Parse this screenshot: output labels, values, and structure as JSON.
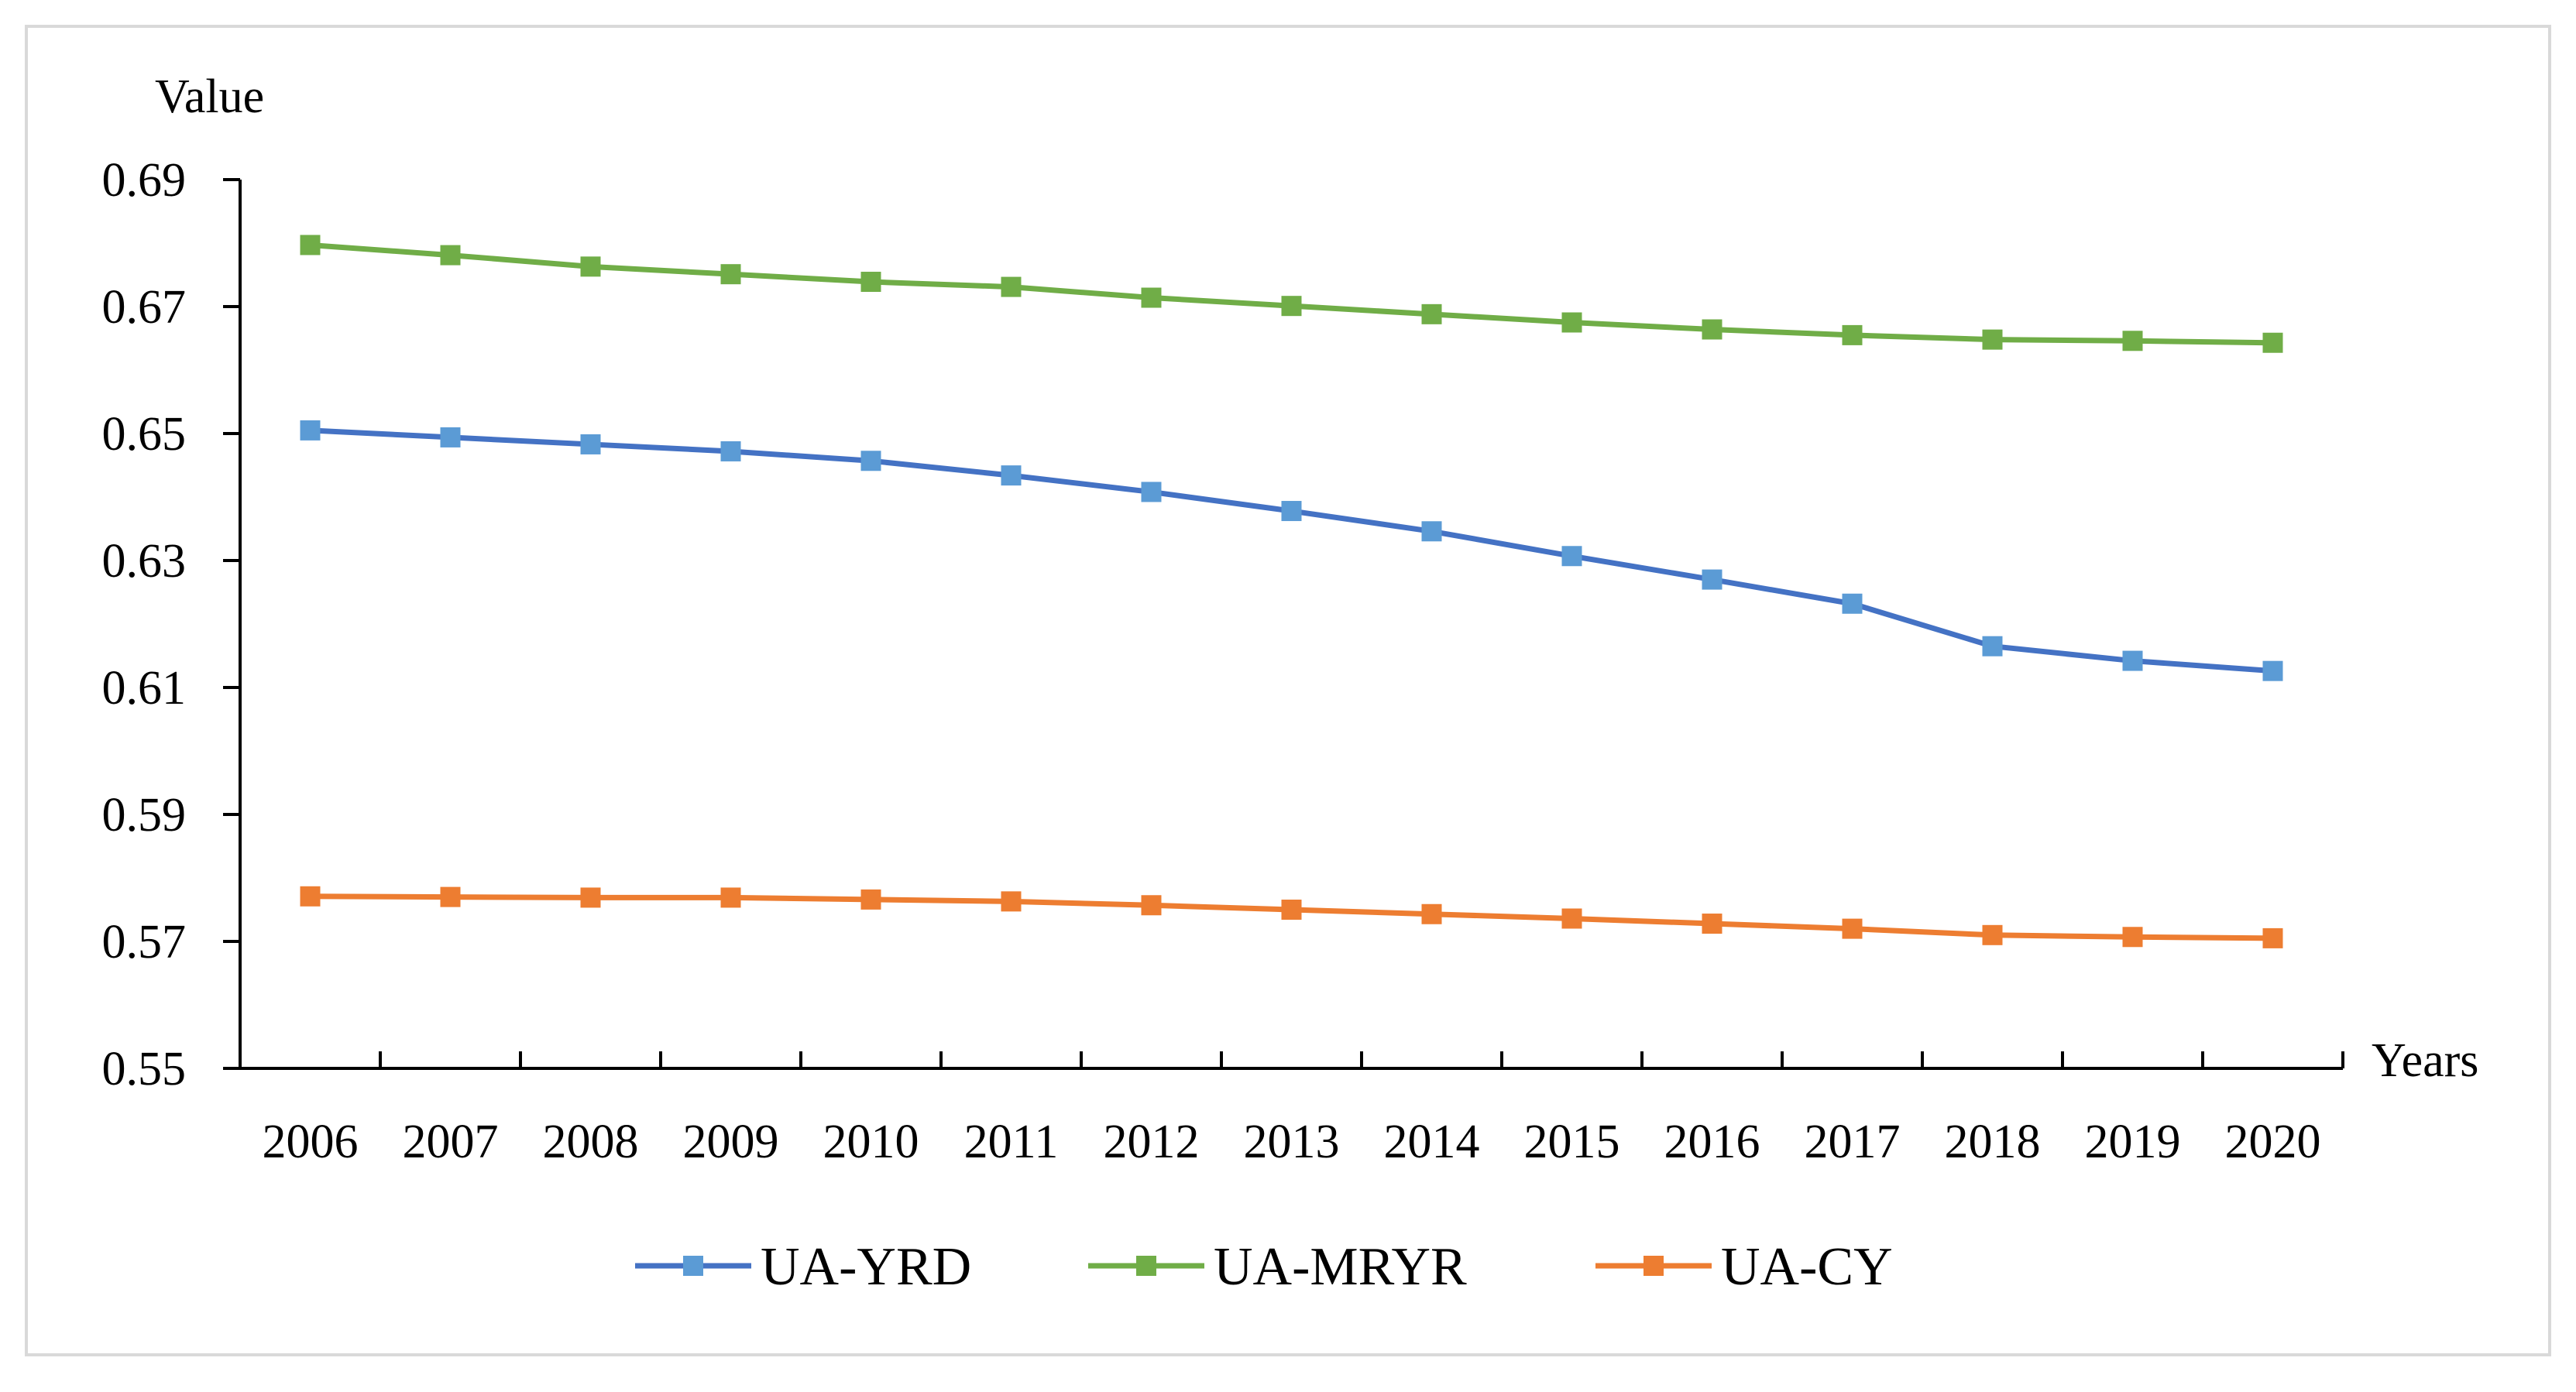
{
  "chart_data": {
    "type": "line",
    "title": "",
    "ylabel": "Value",
    "xlabel": "Years",
    "ylim": [
      0.55,
      0.69
    ],
    "yticks": [
      "0.55",
      "0.57",
      "0.59",
      "0.61",
      "0.63",
      "0.65",
      "0.67",
      "0.69"
    ],
    "grid": false,
    "legend_position": "bottom",
    "categories": [
      "2006",
      "2007",
      "2008",
      "2009",
      "2010",
      "2011",
      "2012",
      "2013",
      "2014",
      "2015",
      "2016",
      "2017",
      "2018",
      "2019",
      "2020"
    ],
    "series": [
      {
        "name": "UA-YRD",
        "color": "#4472C4",
        "marker_color": "#5B9BD5",
        "values": [
          0.6505,
          0.6494,
          0.6483,
          0.6472,
          0.6457,
          0.6434,
          0.6408,
          0.6378,
          0.6346,
          0.6307,
          0.627,
          0.6232,
          0.6165,
          0.6142,
          0.6126
        ]
      },
      {
        "name": "UA-MRYR",
        "color": "#70AD47",
        "marker_color": "#70AD47",
        "values": [
          0.6797,
          0.6781,
          0.6763,
          0.6751,
          0.6739,
          0.6731,
          0.6714,
          0.6701,
          0.6688,
          0.6675,
          0.6664,
          0.6655,
          0.6648,
          0.6646,
          0.6643
        ]
      },
      {
        "name": "UA-CY",
        "color": "#ED7D31",
        "marker_color": "#ED7D31",
        "values": [
          0.5771,
          0.577,
          0.5769,
          0.5769,
          0.5766,
          0.5763,
          0.5757,
          0.575,
          0.5743,
          0.5736,
          0.5728,
          0.572,
          0.571,
          0.5707,
          0.5705
        ]
      }
    ]
  }
}
